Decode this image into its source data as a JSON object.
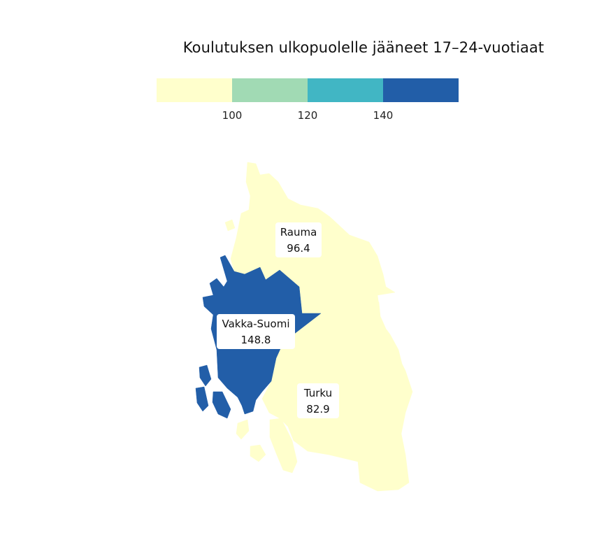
{
  "title": "Koulutuksen ulkopuolelle jääneet 17–24-vuotiaat",
  "legend": {
    "colors": [
      "#ffffcc",
      "#a1dab4",
      "#41b6c4",
      "#225ea8"
    ],
    "breaks": [
      "100",
      "120",
      "140"
    ]
  },
  "regions": [
    {
      "id": "rauma",
      "name": "Rauma",
      "value": "96.4",
      "color": "#ffffcc"
    },
    {
      "id": "vakka-suomi",
      "name": "Vakka-Suomi",
      "value": "148.8",
      "color": "#225ea8"
    },
    {
      "id": "turku",
      "name": "Turku",
      "value": "82.9",
      "color": "#ffffcc"
    }
  ]
}
